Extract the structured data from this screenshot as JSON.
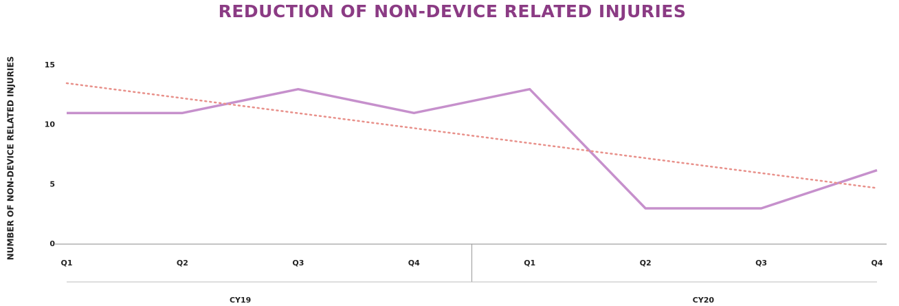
{
  "chart_data": {
    "type": "line",
    "title": "REDUCTION OF NON-DEVICE RELATED INJURIES",
    "y_label": "NUMBER OF NON-DEVICE RELATED INJURIES",
    "categories": [
      "Q1",
      "Q2",
      "Q3",
      "Q4",
      "Q1",
      "Q2",
      "Q3",
      "Q4"
    ],
    "groups": [
      "CY19",
      "CY20"
    ],
    "series": [
      {
        "color": "#c690cc",
        "values": [
          11,
          11,
          13,
          11,
          13,
          3,
          3,
          6.2
        ]
      }
    ],
    "trendline": {
      "color": "#e8908a",
      "style": "dotted",
      "values": [
        13.5,
        4.7
      ]
    },
    "ylim": [
      0,
      15
    ],
    "yticks": [
      0,
      5,
      10,
      15
    ],
    "grid": false
  }
}
